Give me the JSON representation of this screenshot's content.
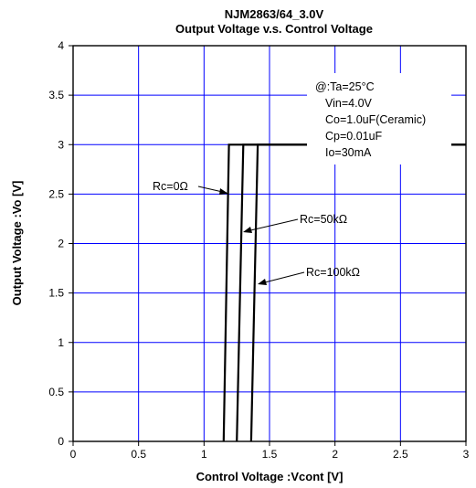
{
  "chart_data": {
    "type": "line",
    "title": "NJM2863/64_3.0V",
    "subtitle": "Output Voltage v.s. Control Voltage",
    "xlabel": "Control Voltage :Vcont [V]",
    "ylabel": "Output Voltage :Vo [V]",
    "xlim": [
      0,
      3
    ],
    "ylim": [
      0,
      4
    ],
    "xticks": [
      "0",
      "0.5",
      "1",
      "1.5",
      "2",
      "2.5",
      "3"
    ],
    "yticks": [
      "0",
      "0.5",
      "1",
      "1.5",
      "2",
      "2.5",
      "3",
      "3.5",
      "4"
    ],
    "grid": true,
    "conditions_header": "@:Ta=25",
    "conditions_header_unit": "°C",
    "conditions": [
      "Vin=4.0V",
      "Co=1.0uF(Ceramic)",
      "Cp=0.01uF",
      "Io=30mA"
    ],
    "series": [
      {
        "name": "Rc=0Ω",
        "x": [
          1.15,
          1.19,
          3.0
        ],
        "y": [
          0,
          3,
          3
        ]
      },
      {
        "name": "Rc=50kΩ",
        "x": [
          1.25,
          1.3,
          3.0
        ],
        "y": [
          0,
          3,
          3
        ]
      },
      {
        "name": "Rc=100kΩ",
        "x": [
          1.36,
          1.41,
          3.0
        ],
        "y": [
          0,
          3,
          3
        ]
      }
    ],
    "series_color": "#000000",
    "grid_color": "#0000ff"
  }
}
